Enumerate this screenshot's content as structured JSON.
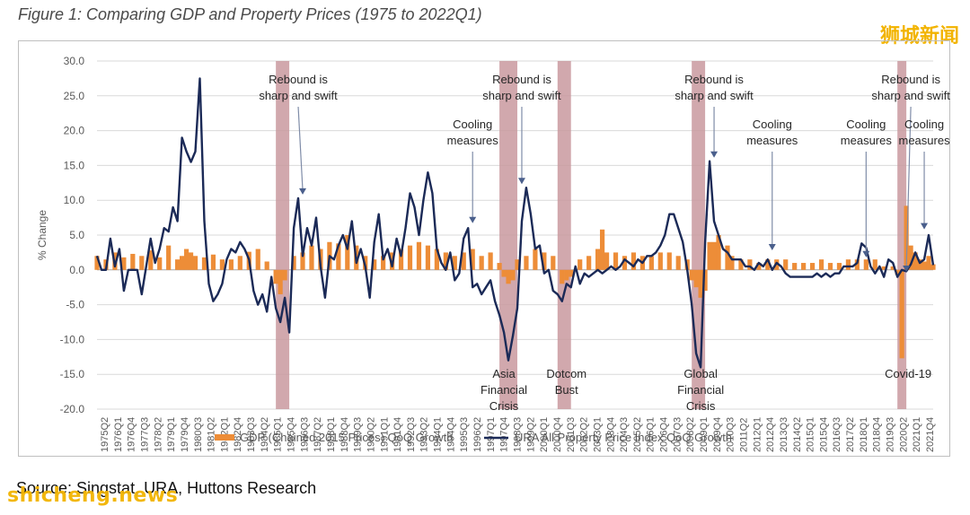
{
  "figure_title": "Figure 1: Comparing GDP and Property Prices (1975 to 2022Q1)",
  "source": "Source: Singstat, URA, Huttons Research",
  "watermark_cn": "狮城新闻",
  "watermark_en": "shicheng.news",
  "colors": {
    "gdp_bar": "#ed8d38",
    "price_line": "#1b2a57",
    "recession_band": "#c9999f",
    "grid": "#d9d9d9",
    "axis_text": "#595959",
    "watermark": "#f2b400"
  },
  "chart_data": {
    "type": "bar+line",
    "ylabel": "% Change",
    "ylim": [
      -20,
      30
    ],
    "yticks": [
      "30.0",
      "25.0",
      "20.0",
      "15.0",
      "10.0",
      "5.0",
      "0.0",
      "-5.0",
      "-10.0",
      "-15.0",
      "-20.0"
    ],
    "xlim": [
      1975.25,
      2022.0
    ],
    "xtick_labels": [
      "1975Q2",
      "1976Q1",
      "1976Q4",
      "1977Q3",
      "1978Q2",
      "1979Q1",
      "1979Q4",
      "1980Q3",
      "1981Q2",
      "1982Q1",
      "1982Q4",
      "1983Q3",
      "1984Q2",
      "1985Q1",
      "1985Q4",
      "1986Q3",
      "1987Q2",
      "1988Q1",
      "1988Q4",
      "1989Q3",
      "1990Q2",
      "1991Q1",
      "1991Q4",
      "1992Q3",
      "1993Q2",
      "1994Q1",
      "1994Q4",
      "1995Q3",
      "1996Q2",
      "1997Q1",
      "1997Q4",
      "1998Q3",
      "1999Q2",
      "2000Q1",
      "2000Q4",
      "2001Q3",
      "2002Q2",
      "2003Q1",
      "2003Q4",
      "2004Q3",
      "2005Q2",
      "2006Q1",
      "2006Q4",
      "2007Q3",
      "2008Q2",
      "2009Q1",
      "2009Q4",
      "2010Q3",
      "2011Q2",
      "2012Q1",
      "2012Q4",
      "2013Q3",
      "2014Q2",
      "2015Q1",
      "2015Q4",
      "2016Q3",
      "2017Q2",
      "2018Q1",
      "2018Q4",
      "2019Q3",
      "2020Q2",
      "2021Q1",
      "2021Q4"
    ],
    "legend": [
      {
        "name": "GDP (Chained 2015 Prices) QoQ Growth",
        "kind": "bar"
      },
      {
        "name": "URA All Property Price Index QoQ Growth",
        "kind": "line"
      }
    ],
    "legend_position": "bottom",
    "grid": true,
    "shaded_periods": [
      {
        "start": 1985.25,
        "end": 1986.0
      },
      {
        "start": 1997.75,
        "end": 1998.75
      },
      {
        "start": 2001.0,
        "end": 2001.75
      },
      {
        "start": 2008.5,
        "end": 2009.25
      },
      {
        "start": 2020.0,
        "end": 2020.5
      }
    ],
    "annotations": [
      {
        "text": "Rebound is\nsharp and swift",
        "x": 1986.5,
        "arrow_to": [
          1986.75,
          10.3
        ]
      },
      {
        "text": "Rebound is\nsharp and swift",
        "x": 1999.0,
        "arrow_to": [
          1999.0,
          11.8
        ]
      },
      {
        "text": "Rebound is\nsharp and swift",
        "x": 2009.75,
        "arrow_to": [
          2009.75,
          15.6
        ]
      },
      {
        "text": "Rebound is\nsharp and swift",
        "x": 2020.75,
        "arrow_to": [
          2020.5,
          -0.8
        ]
      },
      {
        "text": "Cooling\nmeasures",
        "x": 1996.25,
        "arrow_to": [
          1996.25,
          6.2
        ]
      },
      {
        "text": "Cooling\nmeasures",
        "x": 2013.0,
        "arrow_to": [
          2013.0,
          2.3
        ]
      },
      {
        "text": "Cooling\nmeasures",
        "x": 2018.25,
        "arrow_to": [
          2018.25,
          1.3
        ]
      },
      {
        "text": "Cooling\nmeasures",
        "x": 2021.5,
        "arrow_to": [
          2021.5,
          5.3
        ]
      },
      {
        "text": "Asia\nFinancial\nCrisis",
        "x": 1998.0,
        "y": -15.5
      },
      {
        "text": "Dotcom\nBust",
        "x": 2001.5,
        "y": -15.5
      },
      {
        "text": "Global\nFinancial\nCrisis",
        "x": 2009.0,
        "y": -15.5
      },
      {
        "text": "Covid-19",
        "x": 2020.6,
        "y": -15.5
      }
    ],
    "series": [
      {
        "name": "GDP (Chained 2015 Prices) QoQ Growth",
        "type": "bar",
        "x": [
          1975.25,
          1975.75,
          1976.25,
          1976.75,
          1977.25,
          1977.75,
          1978.25,
          1978.75,
          1979.25,
          1979.75,
          1980.0,
          1980.25,
          1980.5,
          1980.75,
          1981.25,
          1981.75,
          1982.25,
          1982.75,
          1983.25,
          1983.75,
          1984.25,
          1984.75,
          1985.25,
          1985.5,
          1985.75,
          1986.25,
          1986.75,
          1987.25,
          1987.75,
          1988.25,
          1988.75,
          1989.25,
          1989.75,
          1990.25,
          1990.75,
          1991.25,
          1991.75,
          1992.25,
          1992.75,
          1993.25,
          1993.75,
          1994.25,
          1994.75,
          1995.25,
          1995.75,
          1996.25,
          1996.75,
          1997.25,
          1997.75,
          1998.0,
          1998.25,
          1998.5,
          1998.75,
          1999.25,
          1999.75,
          2000.25,
          2000.75,
          2001.25,
          2001.5,
          2001.75,
          2002.25,
          2002.75,
          2003.25,
          2003.5,
          2003.75,
          2004.25,
          2004.75,
          2005.25,
          2005.75,
          2006.25,
          2006.75,
          2007.25,
          2007.75,
          2008.25,
          2008.5,
          2008.75,
          2009.0,
          2009.25,
          2009.5,
          2009.75,
          2010.0,
          2010.5,
          2010.75,
          2011.25,
          2011.75,
          2012.25,
          2012.75,
          2013.25,
          2013.75,
          2014.25,
          2014.75,
          2015.25,
          2015.75,
          2016.25,
          2016.75,
          2017.25,
          2017.75,
          2018.25,
          2018.75,
          2019.25,
          2019.75,
          2020.0,
          2020.25,
          2020.5,
          2020.75,
          2021.0,
          2021.25,
          2021.5,
          2021.75,
          2022.0
        ],
        "values": [
          2.0,
          1.5,
          2.5,
          1.8,
          2.3,
          2.0,
          2.8,
          1.8,
          3.5,
          1.5,
          2.0,
          3.0,
          2.5,
          2.0,
          1.8,
          2.2,
          1.5,
          1.5,
          2.0,
          2.6,
          3.0,
          1.2,
          -2.0,
          -3.5,
          -1.5,
          2.0,
          2.5,
          3.5,
          3.0,
          4.0,
          3.8,
          5.0,
          3.5,
          2.0,
          1.5,
          2.0,
          2.5,
          3.0,
          3.5,
          4.0,
          3.5,
          3.0,
          2.5,
          2.0,
          2.5,
          3.0,
          2.0,
          2.5,
          1.0,
          -1.0,
          -2.0,
          -1.5,
          1.5,
          2.0,
          3.0,
          2.5,
          2.0,
          -2.0,
          -1.5,
          -1.0,
          1.5,
          2.0,
          3.0,
          5.8,
          2.5,
          2.5,
          2.0,
          2.5,
          2.0,
          2.0,
          2.5,
          2.5,
          2.0,
          1.5,
          -1.5,
          -2.5,
          -4.0,
          -3.0,
          4.0,
          4.0,
          5.0,
          3.5,
          2.0,
          1.5,
          1.5,
          1.0,
          1.5,
          1.5,
          1.5,
          1.0,
          1.0,
          1.0,
          1.5,
          1.0,
          1.0,
          1.5,
          1.5,
          1.5,
          1.5,
          0.5,
          0.5,
          -0.7,
          -12.7,
          9.2,
          3.5,
          2.5,
          1.5,
          1.2,
          2.0,
          0.8
        ]
      },
      {
        "name": "URA All Property Price Index QoQ Growth",
        "type": "line",
        "x": [
          1975.25,
          1975.5,
          1975.75,
          1976.0,
          1976.25,
          1976.5,
          1976.75,
          1977.0,
          1977.25,
          1977.5,
          1977.75,
          1978.0,
          1978.25,
          1978.5,
          1978.75,
          1979.0,
          1979.25,
          1979.5,
          1979.75,
          1980.0,
          1980.25,
          1980.5,
          1980.75,
          1981.0,
          1981.25,
          1981.5,
          1981.75,
          1982.0,
          1982.25,
          1982.5,
          1982.75,
          1983.0,
          1983.25,
          1983.5,
          1983.75,
          1984.0,
          1984.25,
          1984.5,
          1984.75,
          1985.0,
          1985.25,
          1985.5,
          1985.75,
          1986.0,
          1986.25,
          1986.5,
          1986.75,
          1987.0,
          1987.25,
          1987.5,
          1987.75,
          1988.0,
          1988.25,
          1988.5,
          1988.75,
          1989.0,
          1989.25,
          1989.5,
          1989.75,
          1990.0,
          1990.25,
          1990.5,
          1990.75,
          1991.0,
          1991.25,
          1991.5,
          1991.75,
          1992.0,
          1992.25,
          1992.5,
          1992.75,
          1993.0,
          1993.25,
          1993.5,
          1993.75,
          1994.0,
          1994.25,
          1994.5,
          1994.75,
          1995.0,
          1995.25,
          1995.5,
          1995.75,
          1996.0,
          1996.25,
          1996.5,
          1996.75,
          1997.0,
          1997.25,
          1997.5,
          1997.75,
          1998.0,
          1998.25,
          1998.5,
          1998.75,
          1999.0,
          1999.25,
          1999.5,
          1999.75,
          2000.0,
          2000.25,
          2000.5,
          2000.75,
          2001.0,
          2001.25,
          2001.5,
          2001.75,
          2002.0,
          2002.25,
          2002.5,
          2002.75,
          2003.0,
          2003.25,
          2003.5,
          2003.75,
          2004.0,
          2004.25,
          2004.5,
          2004.75,
          2005.0,
          2005.25,
          2005.5,
          2005.75,
          2006.0,
          2006.25,
          2006.5,
          2006.75,
          2007.0,
          2007.25,
          2007.5,
          2007.75,
          2008.0,
          2008.25,
          2008.5,
          2008.75,
          2009.0,
          2009.25,
          2009.5,
          2009.75,
          2010.0,
          2010.25,
          2010.5,
          2010.75,
          2011.0,
          2011.25,
          2011.5,
          2011.75,
          2012.0,
          2012.25,
          2012.5,
          2012.75,
          2013.0,
          2013.25,
          2013.5,
          2013.75,
          2014.0,
          2014.25,
          2014.5,
          2014.75,
          2015.0,
          2015.25,
          2015.5,
          2015.75,
          2016.0,
          2016.25,
          2016.5,
          2016.75,
          2017.0,
          2017.25,
          2017.5,
          2017.75,
          2018.0,
          2018.25,
          2018.5,
          2018.75,
          2019.0,
          2019.25,
          2019.5,
          2019.75,
          2020.0,
          2020.25,
          2020.5,
          2020.75,
          2021.0,
          2021.25,
          2021.5,
          2021.75,
          2022.0
        ],
        "values": [
          2.0,
          0.0,
          0.0,
          4.5,
          0.5,
          3.0,
          -3.0,
          0.0,
          0.0,
          0.0,
          -3.5,
          0.5,
          4.5,
          1.0,
          3.0,
          6.0,
          5.5,
          9.0,
          7.0,
          19.0,
          17.0,
          15.5,
          17.0,
          27.5,
          7.0,
          -2.0,
          -4.5,
          -3.5,
          -2.0,
          1.5,
          3.0,
          2.5,
          4.0,
          3.0,
          1.5,
          -3.0,
          -5.0,
          -3.5,
          -6.0,
          -1.0,
          -5.5,
          -7.5,
          -4.0,
          -9.0,
          6.0,
          10.3,
          2.0,
          6.0,
          3.5,
          7.5,
          0.5,
          -4.0,
          2.0,
          1.5,
          3.5,
          5.0,
          3.0,
          7.0,
          1.0,
          3.0,
          0.5,
          -4.0,
          4.0,
          8.0,
          1.5,
          3.0,
          0.5,
          4.5,
          2.0,
          6.0,
          11.0,
          9.0,
          5.0,
          10.0,
          14.0,
          11.0,
          3.0,
          1.0,
          0.0,
          2.5,
          -1.5,
          -0.5,
          4.5,
          6.0,
          -2.5,
          -2.0,
          -3.5,
          -2.5,
          -1.5,
          -4.5,
          -6.5,
          -9.0,
          -13.0,
          -9.5,
          -5.5,
          7.0,
          11.8,
          8.0,
          3.0,
          3.5,
          -0.5,
          0.0,
          -3.0,
          -3.5,
          -4.5,
          -2.0,
          -2.5,
          0.5,
          -2.0,
          -0.5,
          -1.0,
          -0.5,
          0.0,
          -0.5,
          0.0,
          0.5,
          0.0,
          0.5,
          1.5,
          1.0,
          0.5,
          1.5,
          1.0,
          2.0,
          2.0,
          2.5,
          3.5,
          5.0,
          8.0,
          8.0,
          6.0,
          4.0,
          0.0,
          -5.0,
          -12.0,
          -14.0,
          4.0,
          15.6,
          7.0,
          5.0,
          3.0,
          2.5,
          1.5,
          1.5,
          1.5,
          0.5,
          0.5,
          0.0,
          1.0,
          0.5,
          1.5,
          0.0,
          1.0,
          0.5,
          -0.5,
          -1.0,
          -1.0,
          -1.0,
          -1.0,
          -1.0,
          -1.0,
          -0.5,
          -1.0,
          -0.5,
          -1.0,
          -0.5,
          -0.5,
          0.5,
          0.5,
          0.5,
          1.0,
          3.8,
          3.2,
          0.5,
          -0.5,
          0.5,
          -1.0,
          1.5,
          1.0,
          -1.0,
          0.0,
          -0.2,
          0.8,
          2.5,
          1.0,
          1.5,
          5.0,
          0.7
        ]
      }
    ]
  }
}
